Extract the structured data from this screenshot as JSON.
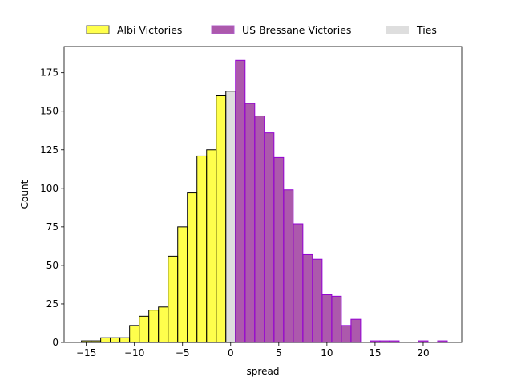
{
  "chart_data": {
    "type": "bar",
    "title": "",
    "xlabel": "spread",
    "ylabel": "Count",
    "xlim": [
      -17.3,
      24.0
    ],
    "ylim": [
      0,
      192
    ],
    "xticks": [
      -15,
      -10,
      -5,
      0,
      5,
      10,
      15,
      20
    ],
    "yticks": [
      0,
      25,
      50,
      75,
      100,
      125,
      150,
      175
    ],
    "grid": false,
    "legend_position": "top-center",
    "legend": [
      {
        "name": "Albi Victories",
        "color": "#ffff00"
      },
      {
        "name": "US Bressane Victories",
        "color": "#800080"
      },
      {
        "name": "Ties",
        "color": "#d3d3d3"
      }
    ],
    "series": [
      {
        "name": "Albi Victories",
        "fill": "#ffff00",
        "fill_opacity": 0.7,
        "edge": "#000000",
        "bins": [
          {
            "x0": -15.5,
            "x1": -14.5,
            "count": 1
          },
          {
            "x0": -14.5,
            "x1": -13.5,
            "count": 1
          },
          {
            "x0": -13.5,
            "x1": -12.5,
            "count": 3
          },
          {
            "x0": -12.5,
            "x1": -11.5,
            "count": 3
          },
          {
            "x0": -11.5,
            "x1": -10.5,
            "count": 3
          },
          {
            "x0": -10.5,
            "x1": -9.5,
            "count": 11
          },
          {
            "x0": -9.5,
            "x1": -8.5,
            "count": 17
          },
          {
            "x0": -8.5,
            "x1": -7.5,
            "count": 21
          },
          {
            "x0": -7.5,
            "x1": -6.5,
            "count": 23
          },
          {
            "x0": -6.5,
            "x1": -5.5,
            "count": 56
          },
          {
            "x0": -5.5,
            "x1": -4.5,
            "count": 75
          },
          {
            "x0": -4.5,
            "x1": -3.5,
            "count": 97
          },
          {
            "x0": -3.5,
            "x1": -2.5,
            "count": 121
          },
          {
            "x0": -2.5,
            "x1": -1.5,
            "count": 125
          },
          {
            "x0": -1.5,
            "x1": -0.5,
            "count": 160
          }
        ]
      },
      {
        "name": "Ties",
        "fill": "#d3d3d3",
        "fill_opacity": 0.75,
        "edge": "#000000",
        "bins": [
          {
            "x0": -0.5,
            "x1": 0.5,
            "count": 163
          }
        ]
      },
      {
        "name": "US Bressane Victories",
        "fill": "#800080",
        "fill_opacity": 0.65,
        "edge": "#9400d3",
        "bins": [
          {
            "x0": 0.5,
            "x1": 1.5,
            "count": 183
          },
          {
            "x0": 1.5,
            "x1": 2.5,
            "count": 155
          },
          {
            "x0": 2.5,
            "x1": 3.5,
            "count": 147
          },
          {
            "x0": 3.5,
            "x1": 4.5,
            "count": 136
          },
          {
            "x0": 4.5,
            "x1": 5.5,
            "count": 120
          },
          {
            "x0": 5.5,
            "x1": 6.5,
            "count": 99
          },
          {
            "x0": 6.5,
            "x1": 7.5,
            "count": 77
          },
          {
            "x0": 7.5,
            "x1": 8.5,
            "count": 57
          },
          {
            "x0": 8.5,
            "x1": 9.5,
            "count": 54
          },
          {
            "x0": 9.5,
            "x1": 10.5,
            "count": 31
          },
          {
            "x0": 10.5,
            "x1": 11.5,
            "count": 30
          },
          {
            "x0": 11.5,
            "x1": 12.5,
            "count": 11
          },
          {
            "x0": 12.5,
            "x1": 13.5,
            "count": 15
          },
          {
            "x0": 14.5,
            "x1": 15.5,
            "count": 1
          },
          {
            "x0": 15.5,
            "x1": 16.5,
            "count": 1
          },
          {
            "x0": 16.5,
            "x1": 17.5,
            "count": 1
          },
          {
            "x0": 19.5,
            "x1": 20.5,
            "count": 1
          },
          {
            "x0": 21.5,
            "x1": 22.5,
            "count": 1
          }
        ]
      }
    ]
  }
}
